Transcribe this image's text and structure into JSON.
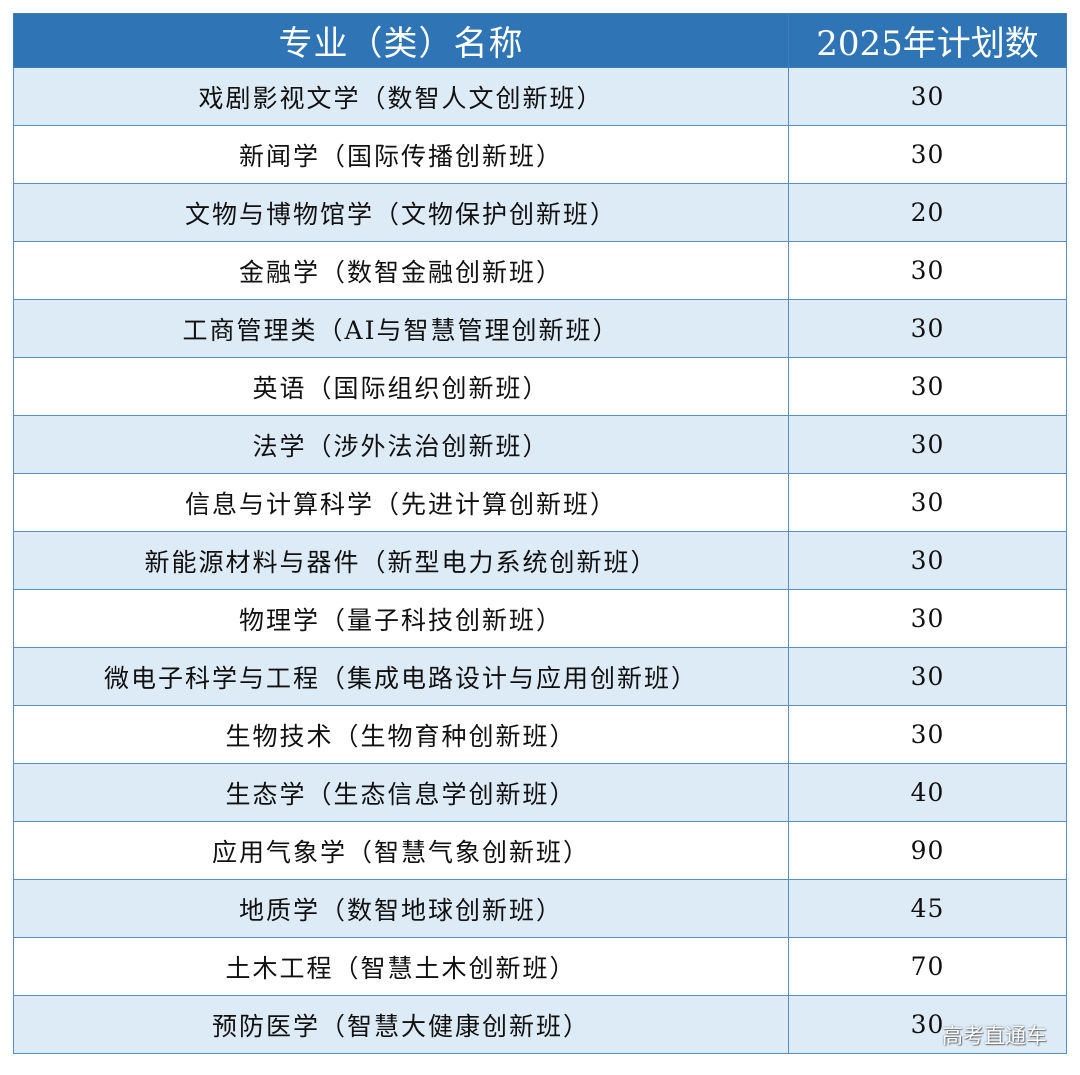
{
  "table": {
    "headers": [
      "专业（类）名称",
      "2025年计划数"
    ],
    "rows": [
      {
        "name": "戏剧影视文学（数智人文创新班）",
        "count": "30"
      },
      {
        "name": "新闻学（国际传播创新班）",
        "count": "30"
      },
      {
        "name": "文物与博物馆学（文物保护创新班）",
        "count": "20"
      },
      {
        "name": "金融学（数智金融创新班）",
        "count": "30"
      },
      {
        "name": "工商管理类（AI与智慧管理创新班）",
        "count": "30"
      },
      {
        "name": "英语（国际组织创新班）",
        "count": "30"
      },
      {
        "name": "法学（涉外法治创新班）",
        "count": "30"
      },
      {
        "name": "信息与计算科学（先进计算创新班）",
        "count": "30"
      },
      {
        "name": "新能源材料与器件（新型电力系统创新班）",
        "count": "30"
      },
      {
        "name": "物理学（量子科技创新班）",
        "count": "30"
      },
      {
        "name": "微电子科学与工程（集成电路设计与应用创新班）",
        "count": "30"
      },
      {
        "name": "生物技术（生物育种创新班）",
        "count": "30"
      },
      {
        "name": "生态学（生态信息学创新班）",
        "count": "40"
      },
      {
        "name": "应用气象学（智慧气象创新班）",
        "count": "90"
      },
      {
        "name": "地质学（数智地球创新班）",
        "count": "45"
      },
      {
        "name": "土木工程（智慧土木创新班）",
        "count": "70"
      },
      {
        "name": "预防医学（智慧大健康创新班）",
        "count": "30"
      }
    ]
  },
  "watermark": "高考直通车",
  "colors": {
    "header_bg": "#2f75b5",
    "header_text": "#ffffff",
    "row_alt_bg": "#ddebf7",
    "row_bg": "#ffffff",
    "border": "#5a8dc7"
  }
}
